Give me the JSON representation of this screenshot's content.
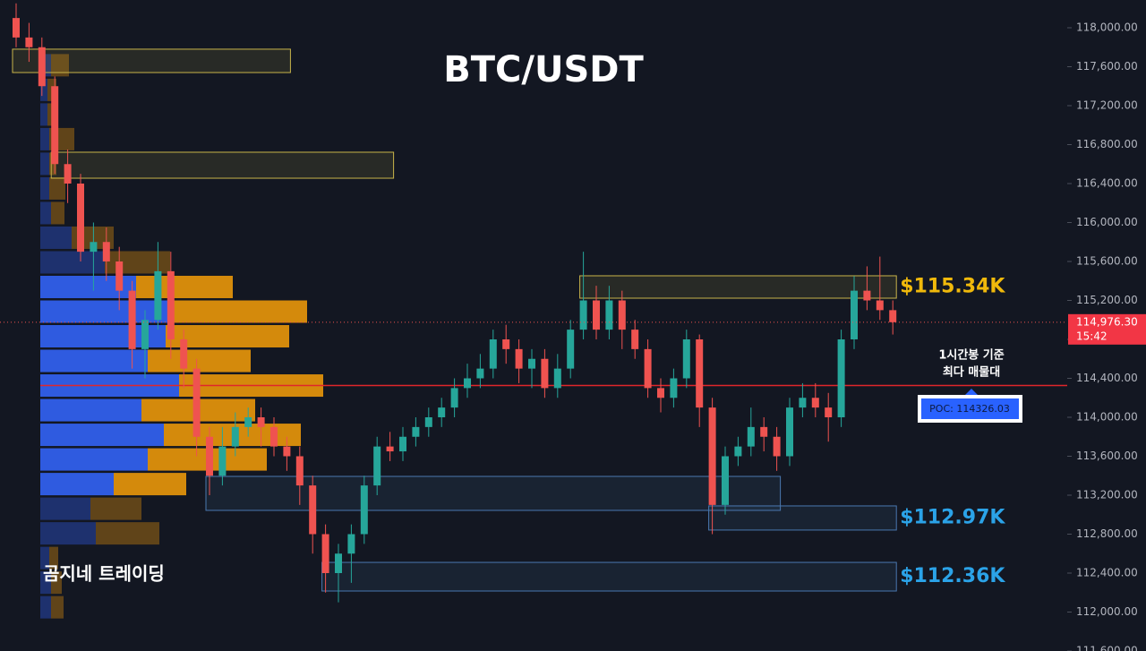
{
  "chart_data": {
    "type": "candlestick",
    "title": "BTC/USDT",
    "watermark": "곰지네 트레이딩",
    "ylim": [
      111600,
      118285
    ],
    "yticks": [
      {
        "value": 111600,
        "label": "111,600.00"
      },
      {
        "value": 112000,
        "label": "112,000.00"
      },
      {
        "value": 112400,
        "label": "112,400.00"
      },
      {
        "value": 112800,
        "label": "112,800.00"
      },
      {
        "value": 113200,
        "label": "113,200.00"
      },
      {
        "value": 113600,
        "label": "113,600.00"
      },
      {
        "value": 114000,
        "label": "114,000.00"
      },
      {
        "value": 114400,
        "label": "114,400.00"
      },
      {
        "value": 114800,
        "label": "114,800.00"
      },
      {
        "value": 115200,
        "label": "115,200.00"
      },
      {
        "value": 115600,
        "label": "115,600.00"
      },
      {
        "value": 116000,
        "label": "116,000.00"
      },
      {
        "value": 116400,
        "label": "116,400.00"
      },
      {
        "value": 116800,
        "label": "116,800.00"
      },
      {
        "value": 117200,
        "label": "117,200.00"
      },
      {
        "value": 117600,
        "label": "117,600.00"
      },
      {
        "value": 118000,
        "label": "118,000.00"
      }
    ],
    "up_color": "#26a69a",
    "down_color": "#ef5350",
    "open": [
      118100,
      117900,
      117800,
      117400,
      116600,
      116400,
      115700,
      115800,
      115600,
      115300,
      114700,
      115000,
      115500,
      114800,
      114500,
      113800,
      113400,
      113700,
      113900,
      114000,
      113900,
      113700,
      113600,
      113300,
      112800,
      112400,
      112600,
      112800,
      113300,
      113700,
      113650,
      113800,
      113900,
      114000,
      114100,
      114300,
      114400,
      114500,
      114800,
      114700,
      114500,
      114600,
      114300,
      114500,
      114900,
      115200,
      114900,
      115200,
      114900,
      114700,
      114300,
      114200,
      114400,
      114800,
      114100,
      113100,
      113600,
      113700,
      113900,
      113800,
      113600,
      114100,
      114200,
      114100,
      114000,
      114800,
      115300,
      115200,
      115100
    ],
    "high": [
      118250,
      118050,
      117900,
      117500,
      116750,
      116500,
      116000,
      115950,
      115750,
      115400,
      115100,
      115800,
      115700,
      114900,
      114600,
      113900,
      113900,
      114050,
      114100,
      114100,
      114000,
      113800,
      113700,
      113400,
      112900,
      112700,
      112900,
      113400,
      113800,
      113850,
      113900,
      114000,
      114100,
      114200,
      114400,
      114550,
      114650,
      114900,
      114950,
      114800,
      114700,
      114700,
      114650,
      115000,
      115700,
      115350,
      115350,
      115300,
      115000,
      114800,
      114400,
      114500,
      114900,
      114850,
      114200,
      113700,
      113800,
      114100,
      114000,
      113900,
      114200,
      114350,
      114350,
      114250,
      114900,
      115450,
      115550,
      115650,
      115200
    ],
    "low": [
      117800,
      117650,
      117300,
      116500,
      116200,
      115600,
      115300,
      115400,
      115100,
      114500,
      114400,
      114900,
      114600,
      114300,
      113600,
      113200,
      113300,
      113600,
      113800,
      113700,
      113600,
      113450,
      113100,
      112600,
      112200,
      112100,
      112300,
      112700,
      113200,
      113550,
      113550,
      113700,
      113800,
      113900,
      114000,
      114200,
      114300,
      114400,
      114550,
      114350,
      114300,
      114200,
      114200,
      114400,
      114800,
      114800,
      114800,
      114700,
      114600,
      114200,
      114050,
      114100,
      114300,
      113900,
      112800,
      113000,
      113500,
      113600,
      113650,
      113450,
      113500,
      114000,
      114000,
      113750,
      113900,
      114700,
      115100,
      115000,
      114850
    ],
    "close": [
      117900,
      117800,
      117400,
      116600,
      116400,
      115700,
      115800,
      115600,
      115300,
      114700,
      115000,
      115500,
      114800,
      114500,
      113800,
      113400,
      113700,
      113900,
      114000,
      113900,
      113700,
      113600,
      113300,
      112800,
      112400,
      112600,
      112800,
      113300,
      113700,
      113650,
      113800,
      113900,
      114000,
      114100,
      114300,
      114400,
      114500,
      114800,
      114700,
      114500,
      114600,
      114300,
      114500,
      114900,
      115200,
      114900,
      115200,
      114900,
      114700,
      114300,
      114200,
      114400,
      114800,
      114100,
      113100,
      113600,
      113700,
      113900,
      113800,
      113600,
      114100,
      114200,
      114100,
      114000,
      114800,
      115300,
      115200,
      115100,
      114976.3
    ],
    "volume_profile": {
      "levels": [
        117615,
        117362,
        117109,
        116856,
        116603,
        116350,
        116097,
        115844,
        115591,
        115338,
        115085,
        114832,
        114579,
        114326,
        114073,
        113820,
        113567,
        113314,
        113061,
        112808,
        112555,
        112302,
        112049
      ],
      "buy": [
        12,
        8,
        8,
        10,
        10,
        10,
        12,
        35,
        72,
        107,
        145,
        140,
        120,
        155,
        113,
        138,
        120,
        82,
        56,
        62,
        10,
        12,
        12
      ],
      "sell": [
        20,
        10,
        8,
        28,
        8,
        18,
        15,
        47,
        73,
        108,
        153,
        138,
        115,
        161,
        127,
        153,
        133,
        81,
        57,
        71,
        10,
        12,
        14
      ],
      "buy_color": "#2f5be0",
      "sell_color": "#d48a0c",
      "value_area": [
        113314,
        115338
      ]
    },
    "zones": [
      {
        "top": 117780,
        "bottom": 117540,
        "start": 0,
        "end": 21,
        "color": "#c9b44a"
      },
      {
        "top": 116722,
        "bottom": 116455,
        "start": 3,
        "end": 29,
        "color": "#c9b44a"
      },
      {
        "top": 115453,
        "bottom": 115223,
        "start": 44,
        "end": 68,
        "color": "#c9b44a",
        "label": "$115.34K",
        "label_color": "#f0b90b"
      },
      {
        "top": 113393,
        "bottom": 113044,
        "start": 15,
        "end": 59,
        "color": "#4a78b0"
      },
      {
        "top": 113090,
        "bottom": 112842,
        "start": 54,
        "end": 68,
        "color": "#4a78b0",
        "label": "$112.97K",
        "label_color": "#2ba3e8"
      },
      {
        "top": 112510,
        "bottom": 112216,
        "start": 24,
        "end": 68,
        "color": "#4a78b0",
        "label": "$112.36K",
        "label_color": "#2ba3e8"
      }
    ],
    "poc": {
      "value": 114326.03,
      "label": "POC: 114326.03",
      "note": [
        "1시간봉 기준",
        "최다 매물대"
      ]
    },
    "last_price": {
      "value": 114976.3,
      "label": "114,976.30",
      "countdown": "15:42"
    }
  }
}
